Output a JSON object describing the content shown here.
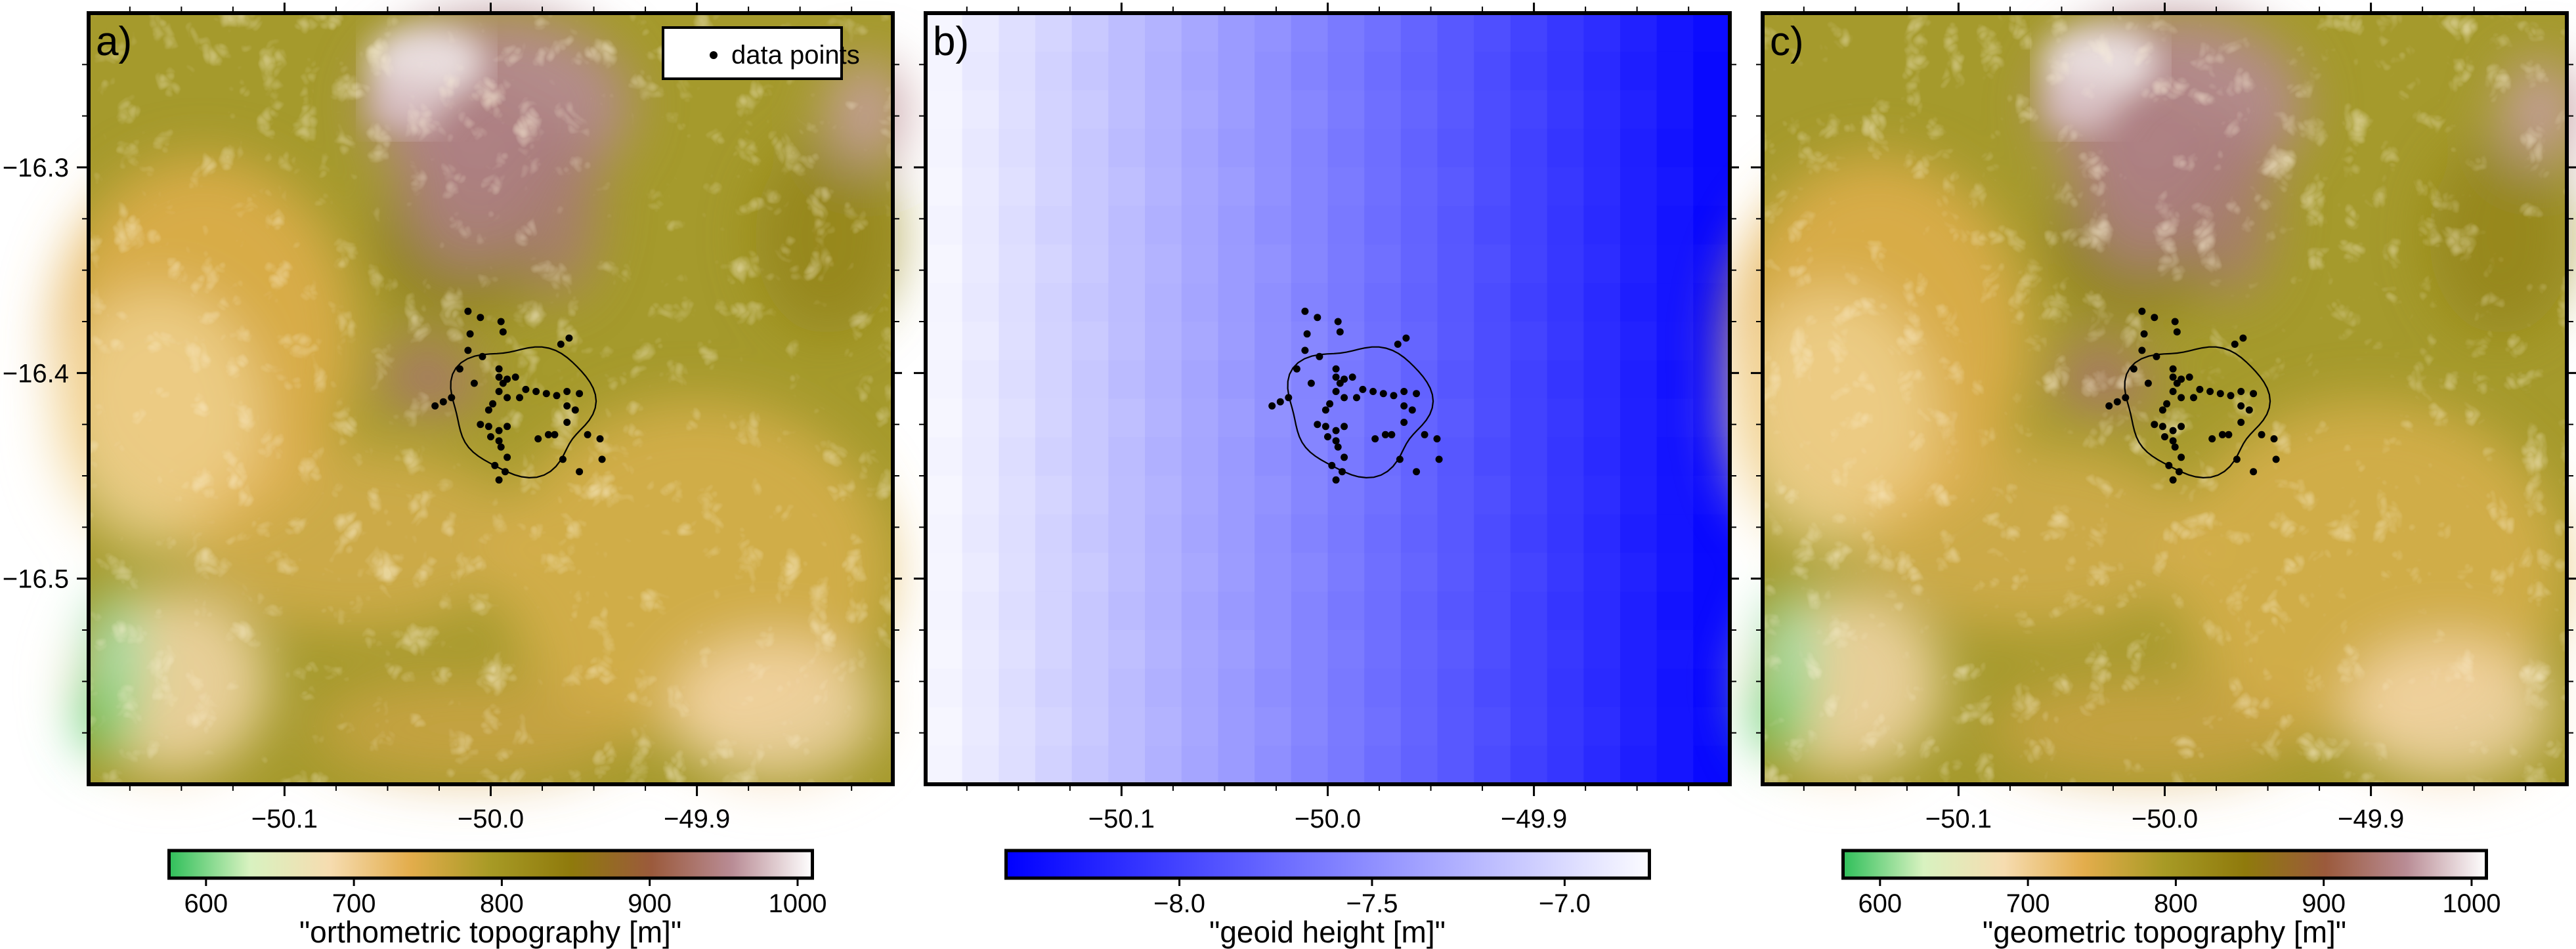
{
  "panels": [
    {
      "id": "a",
      "label": "a)",
      "kind": "topography",
      "colorbar": {
        "title": "\"orthometric topography [m]\"",
        "ticks": [
          600,
          700,
          800,
          900,
          1000
        ],
        "range": [
          575,
          1010
        ],
        "colors": [
          "#2fbf5a",
          "#d8f2c0",
          "#f6dcb0",
          "#e3ad4c",
          "#a79a25",
          "#8f7a0c",
          "#9b5a3c",
          "#b98c95",
          "#ffffff"
        ]
      }
    },
    {
      "id": "b",
      "label": "b)",
      "kind": "geoid",
      "colorbar": {
        "title": "\"geoid height [m]\"",
        "ticks": [
          -8.0,
          -7.5,
          -7.0
        ],
        "tick_labels": [
          "−8.0",
          "−7.5",
          "−7.0"
        ],
        "range": [
          -8.45,
          -6.78
        ],
        "colors": [
          "#0000ff",
          "#fbfbff"
        ]
      }
    },
    {
      "id": "c",
      "label": "c)",
      "kind": "topography",
      "colorbar": {
        "title": "\"geometric topography [m]\"",
        "ticks": [
          600,
          700,
          800,
          900,
          1000
        ],
        "range": [
          575,
          1010
        ],
        "colors": [
          "#2fbf5a",
          "#d8f2c0",
          "#f6dcb0",
          "#e3ad4c",
          "#a79a25",
          "#8f7a0c",
          "#9b5a3c",
          "#b98c95",
          "#ffffff"
        ]
      }
    }
  ],
  "map": {
    "lon_range": [
      -50.195,
      -49.805
    ],
    "lat_range": [
      -16.6,
      -16.225
    ],
    "lon_ticks": [
      -50.1,
      -50.0,
      -49.9
    ],
    "lon_tick_labels": [
      "−50.1",
      "−50.0",
      "−49.9"
    ],
    "lat_ticks": [
      -16.3,
      -16.4,
      -16.5
    ],
    "lat_tick_labels": [
      "−16.3",
      "−16.4",
      "−16.5"
    ]
  },
  "legend": {
    "label": "data points"
  },
  "data_points": [
    [
      -50.011,
      -16.37
    ],
    [
      -50.005,
      -16.373
    ],
    [
      -49.995,
      -16.375
    ],
    [
      -50.01,
      -16.381
    ],
    [
      -49.994,
      -16.38
    ],
    [
      -49.962,
      -16.383
    ],
    [
      -49.966,
      -16.386
    ],
    [
      -50.011,
      -16.389
    ],
    [
      -50.004,
      -16.392
    ],
    [
      -49.996,
      -16.398
    ],
    [
      -49.996,
      -16.402
    ],
    [
      -49.994,
      -16.405
    ],
    [
      -49.992,
      -16.403
    ],
    [
      -49.988,
      -16.402
    ],
    [
      -50.015,
      -16.398
    ],
    [
      -50.008,
      -16.405
    ],
    [
      -49.983,
      -16.408
    ],
    [
      -49.978,
      -16.409
    ],
    [
      -49.973,
      -16.41
    ],
    [
      -49.968,
      -16.411
    ],
    [
      -49.963,
      -16.409
    ],
    [
      -49.957,
      -16.41
    ],
    [
      -49.996,
      -16.409
    ],
    [
      -49.992,
      -16.412
    ],
    [
      -49.986,
      -16.412
    ],
    [
      -49.999,
      -16.415
    ],
    [
      -50.019,
      -16.412
    ],
    [
      -50.023,
      -16.414
    ],
    [
      -50.027,
      -16.416
    ],
    [
      -50.001,
      -16.418
    ],
    [
      -49.963,
      -16.416
    ],
    [
      -49.959,
      -16.418
    ],
    [
      -49.963,
      -16.424
    ],
    [
      -50.005,
      -16.425
    ],
    [
      -50.001,
      -16.426
    ],
    [
      -49.992,
      -16.426
    ],
    [
      -49.996,
      -16.428
    ],
    [
      -50.0,
      -16.431
    ],
    [
      -49.996,
      -16.433
    ],
    [
      -49.995,
      -16.436
    ],
    [
      -49.977,
      -16.432
    ],
    [
      -49.972,
      -16.43
    ],
    [
      -49.969,
      -16.43
    ],
    [
      -49.953,
      -16.43
    ],
    [
      -49.947,
      -16.432
    ],
    [
      -49.992,
      -16.441
    ],
    [
      -49.998,
      -16.445
    ],
    [
      -49.993,
      -16.448
    ],
    [
      -49.996,
      -16.452
    ],
    [
      -49.965,
      -16.442
    ],
    [
      -49.946,
      -16.442
    ],
    [
      -49.957,
      -16.448
    ]
  ]
}
